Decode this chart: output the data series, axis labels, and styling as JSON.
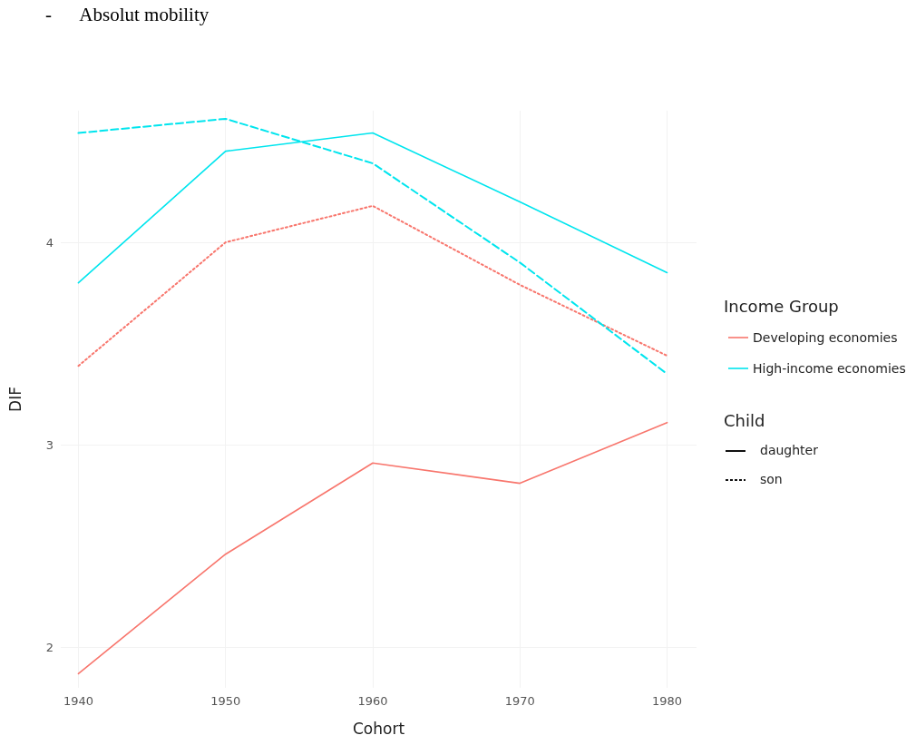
{
  "chart_data": {
    "type": "line",
    "title": "-      Absolut mobility",
    "xlabel": "Cohort",
    "ylabel": "DIF",
    "legend_title": "Income Group",
    "annotations": [
      "Child",
      "daughter",
      "son"
    ],
    "x": [
      1940,
      1950,
      1960,
      1970,
      1980
    ],
    "series": [
      {
        "name": "Developing economies",
        "color": "#f8766d",
        "line_style": "solid",
        "values": [
          1.87,
          2.46,
          2.91,
          2.81,
          3.11
        ]
      },
      {
        "name": "High-income economies",
        "color": "#00e5ee",
        "line_style": "solid",
        "values": [
          3.8,
          4.45,
          4.54,
          4.2,
          3.85
        ]
      },
      {
        "color": "#f8766d",
        "line_style": "dotted",
        "values": [
          3.39,
          4.0,
          4.18,
          3.79,
          3.44
        ]
      },
      {
        "color": "#00e5ee",
        "line_style": "dashed",
        "values": [
          4.54,
          4.61,
          4.39,
          3.9,
          3.35
        ]
      }
    ],
    "xlim": [
      1938.8,
      1982
    ],
    "xticks": [
      1940,
      1950,
      1960,
      1970,
      1980
    ],
    "ylim": [
      1.8,
      4.65
    ],
    "yticks": [
      2,
      3,
      4
    ],
    "grid": true,
    "legend": "right",
    "marker": "none"
  }
}
